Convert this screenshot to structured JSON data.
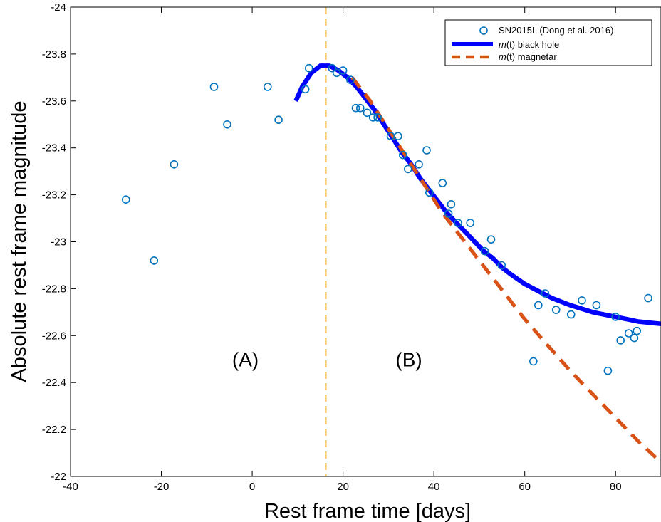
{
  "chart_data": {
    "type": "scatter",
    "xlabel": "Rest frame time [days]",
    "ylabel": "Absolute rest frame magnitude",
    "xlim": [
      -40,
      90
    ],
    "ylim": [
      -22,
      -24
    ],
    "y_reversed": true,
    "x_ticks": [
      -40,
      -20,
      0,
      20,
      40,
      60,
      80
    ],
    "y_ticks": [
      -24,
      -23.8,
      -23.6,
      -23.4,
      -23.2,
      -23,
      -22.8,
      -22.6,
      -22.4,
      -22.2,
      -22
    ],
    "x_tick_labels": [
      "-40",
      "-20",
      "0",
      "20",
      "40",
      "60",
      "80"
    ],
    "y_tick_labels": [
      "-24",
      "-23.8",
      "-23.6",
      "-23.4",
      "-23.2",
      "-23",
      "-22.8",
      "-22.6",
      "-22.4",
      "-22.2",
      "-22"
    ],
    "grid": false,
    "legend_position": "top-right",
    "vline": {
      "x": 16.2,
      "color": "#edb120",
      "style": "dashed"
    },
    "annotations": [
      {
        "text": "(A)",
        "x": -1.5,
        "y": -22.5
      },
      {
        "text": "(B)",
        "x": 34.5,
        "y": -22.5
      }
    ],
    "series": [
      {
        "name": "SN2015L (Dong et al. 2016)",
        "kind": "scatter",
        "color": "#0072bd",
        "points": [
          [
            -27.8,
            -23.18
          ],
          [
            -21.6,
            -22.92
          ],
          [
            -17.2,
            -23.33
          ],
          [
            -8.4,
            -23.66
          ],
          [
            -5.5,
            -23.5
          ],
          [
            3.4,
            -23.66
          ],
          [
            5.8,
            -23.52
          ],
          [
            11.7,
            -23.65
          ],
          [
            12.5,
            -23.74
          ],
          [
            17.6,
            -23.74
          ],
          [
            18.6,
            -23.72
          ],
          [
            20.0,
            -23.73
          ],
          [
            21.6,
            -23.69
          ],
          [
            22.8,
            -23.57
          ],
          [
            23.8,
            -23.57
          ],
          [
            25.3,
            -23.55
          ],
          [
            26.6,
            -23.53
          ],
          [
            27.6,
            -23.53
          ],
          [
            30.5,
            -23.45
          ],
          [
            32.1,
            -23.45
          ],
          [
            33.2,
            -23.37
          ],
          [
            34.3,
            -23.31
          ],
          [
            36.7,
            -23.33
          ],
          [
            38.4,
            -23.39
          ],
          [
            39.0,
            -23.21
          ],
          [
            41.9,
            -23.25
          ],
          [
            43.2,
            -23.12
          ],
          [
            43.8,
            -23.16
          ],
          [
            45.3,
            -23.08
          ],
          [
            48.0,
            -23.08
          ],
          [
            51.2,
            -22.96
          ],
          [
            52.6,
            -23.01
          ],
          [
            54.9,
            -22.9
          ],
          [
            61.9,
            -22.49
          ],
          [
            63.0,
            -22.73
          ],
          [
            64.5,
            -22.78
          ],
          [
            66.9,
            -22.71
          ],
          [
            70.2,
            -22.69
          ],
          [
            72.6,
            -22.75
          ],
          [
            75.8,
            -22.73
          ],
          [
            78.3,
            -22.45
          ],
          [
            80.0,
            -22.68
          ],
          [
            81.1,
            -22.58
          ],
          [
            82.9,
            -22.61
          ],
          [
            84.1,
            -22.59
          ],
          [
            84.7,
            -22.62
          ],
          [
            87.2,
            -22.76
          ]
        ]
      },
      {
        "name": "m(t) black hole",
        "kind": "line",
        "color": "#0000ff",
        "points": [
          [
            9.6,
            -23.6
          ],
          [
            11.0,
            -23.66
          ],
          [
            13.0,
            -23.72
          ],
          [
            15.0,
            -23.75
          ],
          [
            17.0,
            -23.75
          ],
          [
            19.0,
            -23.73
          ],
          [
            21.0,
            -23.7
          ],
          [
            23.0,
            -23.66
          ],
          [
            25.0,
            -23.61
          ],
          [
            27.0,
            -23.56
          ],
          [
            29.0,
            -23.5
          ],
          [
            31.0,
            -23.44
          ],
          [
            33.0,
            -23.38
          ],
          [
            35.0,
            -23.33
          ],
          [
            37.0,
            -23.27
          ],
          [
            39.0,
            -23.22
          ],
          [
            41.0,
            -23.17
          ],
          [
            43.0,
            -23.12
          ],
          [
            45.0,
            -23.08
          ],
          [
            47.0,
            -23.04
          ],
          [
            49.0,
            -23.0
          ],
          [
            51.0,
            -22.96
          ],
          [
            53.0,
            -22.93
          ],
          [
            55.0,
            -22.89
          ],
          [
            57.0,
            -22.86
          ],
          [
            60.0,
            -22.82
          ],
          [
            63.0,
            -22.79
          ],
          [
            66.0,
            -22.76
          ],
          [
            70.0,
            -22.73
          ],
          [
            75.0,
            -22.7
          ],
          [
            80.0,
            -22.68
          ],
          [
            85.0,
            -22.66
          ],
          [
            90.0,
            -22.65
          ]
        ]
      },
      {
        "name": "m(t) magnetar",
        "kind": "line",
        "color": "#d95319",
        "dashed": true,
        "points": [
          [
            22.0,
            -23.7
          ],
          [
            24.0,
            -23.65
          ],
          [
            26.0,
            -23.6
          ],
          [
            28.0,
            -23.54
          ],
          [
            30.0,
            -23.48
          ],
          [
            32.0,
            -23.42
          ],
          [
            34.0,
            -23.36
          ],
          [
            36.0,
            -23.3
          ],
          [
            38.0,
            -23.24
          ],
          [
            40.0,
            -23.18
          ],
          [
            42.0,
            -23.12
          ],
          [
            44.0,
            -23.07
          ],
          [
            46.0,
            -23.02
          ],
          [
            48.0,
            -22.97
          ],
          [
            50.0,
            -22.92
          ],
          [
            52.0,
            -22.87
          ],
          [
            54.0,
            -22.82
          ],
          [
            56.0,
            -22.77
          ],
          [
            58.0,
            -22.72
          ],
          [
            60.0,
            -22.67
          ],
          [
            65.0,
            -22.56
          ],
          [
            70.0,
            -22.45
          ],
          [
            75.0,
            -22.35
          ],
          [
            80.0,
            -22.25
          ],
          [
            85.0,
            -22.15
          ],
          [
            90.0,
            -22.06
          ]
        ]
      }
    ]
  }
}
